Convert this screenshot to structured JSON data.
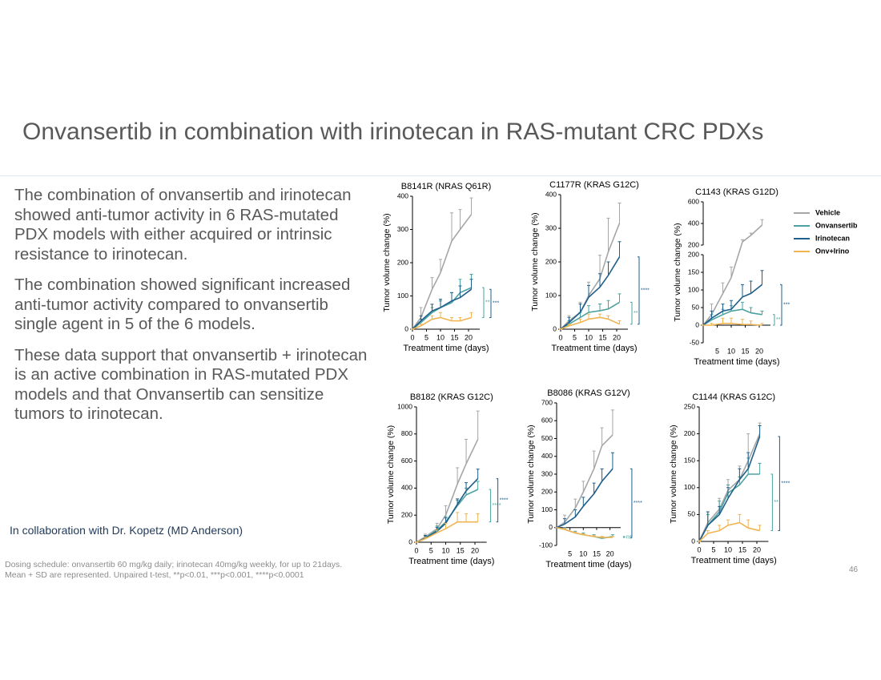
{
  "title": "Onvansertib in combination with irinotecan in RAS-mutant CRC PDXs",
  "bullets": [
    "The combination of onvansertib and irinotecan showed anti-tumor activity in 6 RAS-mutated PDX models with either acquired or intrinsic resistance to irinotecan.",
    "The combination showed significant increased anti-tumor activity compared to onvansertib single agent in 5 of the 6 models.",
    "These data support that onvansertib + irinotecan is an active combination in RAS-mutated PDX models and that Onvansertib can sensitize tumors to irinotecan."
  ],
  "collaboration": "In collaboration with Dr. Kopetz (MD Anderson)",
  "footnotes": [
    "Dosing schedule: onvansertib 60 mg/kg daily; irinotecan 40mg/kg weekly, for up to 21days.",
    "Mean + SD are represented. Unpaired t-test,  **p<0.01, ***p<0.001, ****p<0.0001"
  ],
  "page_number": "46",
  "chart_data": [
    {
      "type": "line",
      "title": "B8141R (NRAS Q61R)",
      "x_label": "Treatment time (days)",
      "y_label": "Tumor volume change (%)",
      "x": [
        0,
        3,
        7,
        10,
        14,
        17,
        21
      ],
      "xlim": [
        0,
        24
      ],
      "xticks": [
        0,
        5,
        10,
        15,
        20
      ],
      "ylim": [
        0,
        400
      ],
      "yticks": [
        0,
        100,
        200,
        300,
        400
      ],
      "series": [
        {
          "name": "Vehicle",
          "color": "#a6a6a6",
          "values": [
            0,
            35,
            120,
            170,
            265,
            300,
            345
          ],
          "errors": [
            0,
            30,
            35,
            40,
            85,
            60,
            50
          ]
        },
        {
          "name": "Onvansertib",
          "color": "#4aa3a0",
          "values": [
            0,
            20,
            50,
            65,
            80,
            110,
            125
          ],
          "errors": [
            0,
            10,
            15,
            20,
            30,
            40,
            40
          ],
          "significance": "**"
        },
        {
          "name": "Irinotecan",
          "color": "#1f5f8b",
          "values": [
            0,
            25,
            55,
            65,
            85,
            95,
            120
          ],
          "errors": [
            0,
            15,
            20,
            25,
            25,
            35,
            30
          ],
          "significance": "***"
        },
        {
          "name": "Onv+Irino",
          "color": "#f0b452",
          "values": [
            0,
            10,
            30,
            35,
            25,
            25,
            35
          ],
          "errors": [
            0,
            5,
            10,
            15,
            10,
            10,
            15
          ]
        }
      ]
    },
    {
      "type": "line",
      "title": "C1177R (KRAS G12C)",
      "x_label": "Treatment time (days)",
      "y_label": "Tumor volume change (%)",
      "x": [
        0,
        3,
        7,
        10,
        14,
        17,
        21
      ],
      "xlim": [
        0,
        24
      ],
      "xticks": [
        0,
        5,
        10,
        15,
        20
      ],
      "ylim": [
        0,
        400
      ],
      "yticks": [
        0,
        100,
        200,
        300,
        400
      ],
      "series": [
        {
          "name": "Vehicle",
          "color": "#a6a6a6",
          "values": [
            0,
            25,
            50,
            100,
            150,
            230,
            315
          ],
          "errors": [
            0,
            15,
            30,
            40,
            70,
            100,
            60
          ]
        },
        {
          "name": "Onvansertib",
          "color": "#4aa3a0",
          "values": [
            0,
            15,
            35,
            50,
            55,
            60,
            80
          ],
          "errors": [
            0,
            10,
            15,
            20,
            20,
            25,
            25
          ],
          "significance": "**"
        },
        {
          "name": "Irinotecan",
          "color": "#1f5f8b",
          "values": [
            0,
            20,
            50,
            95,
            125,
            160,
            215
          ],
          "errors": [
            0,
            15,
            25,
            35,
            40,
            40,
            45
          ],
          "significance": "****"
        },
        {
          "name": "Onv+Irino",
          "color": "#f0b452",
          "values": [
            0,
            10,
            20,
            30,
            35,
            30,
            15
          ],
          "errors": [
            0,
            5,
            10,
            15,
            10,
            10,
            10
          ]
        }
      ]
    },
    {
      "type": "line",
      "title": "C1143 (KRAS G12D)",
      "x_label": "Treatment time (days)",
      "y_label": "Tumor volume change (%)",
      "x": [
        0,
        3,
        7,
        10,
        14,
        17,
        21
      ],
      "xlim": [
        0,
        24
      ],
      "xticks": [
        5,
        10,
        15,
        20
      ],
      "ylim": [
        -50,
        200
      ],
      "yticks": [
        -50,
        0,
        50,
        100,
        150,
        200
      ],
      "y_break": {
        "ylim": [
          200,
          600
        ],
        "yticks": [
          200,
          400,
          600
        ]
      },
      "legend": "right",
      "series": [
        {
          "name": "Vehicle",
          "color": "#a6a6a6",
          "values": [
            0,
            30,
            90,
            135,
            230,
            290,
            385
          ],
          "errors": [
            0,
            30,
            30,
            30,
            20,
            20,
            50
          ]
        },
        {
          "name": "Onvansertib",
          "color": "#4aa3a0",
          "values": [
            0,
            15,
            30,
            40,
            45,
            35,
            30
          ],
          "errors": [
            0,
            15,
            15,
            15,
            20,
            15,
            10
          ],
          "significance": "**"
        },
        {
          "name": "Irinotecan",
          "color": "#1f5f8b",
          "values": [
            0,
            20,
            40,
            45,
            80,
            90,
            115
          ],
          "errors": [
            0,
            20,
            20,
            25,
            35,
            35,
            40
          ],
          "significance": "***"
        },
        {
          "name": "Onv+Irino",
          "color": "#f0b452",
          "values": [
            0,
            0,
            5,
            5,
            2,
            2,
            0
          ],
          "errors": [
            0,
            5,
            15,
            15,
            15,
            10,
            5
          ]
        }
      ]
    },
    {
      "type": "line",
      "title": "B8182 (KRAS G12C)",
      "x_label": "Treatment time (days)",
      "y_label": "Tumor volume change (%)",
      "x": [
        0,
        3,
        7,
        10,
        14,
        17,
        21
      ],
      "xlim": [
        0,
        24
      ],
      "xticks": [
        0,
        5,
        10,
        15,
        20
      ],
      "ylim": [
        0,
        1000
      ],
      "yticks": [
        0,
        200,
        400,
        600,
        800,
        1000
      ],
      "series": [
        {
          "name": "Vehicle",
          "color": "#a6a6a6",
          "values": [
            0,
            40,
            100,
            200,
            430,
            580,
            760
          ],
          "errors": [
            0,
            20,
            40,
            70,
            120,
            180,
            210
          ]
        },
        {
          "name": "Onvansertib",
          "color": "#4aa3a0",
          "values": [
            0,
            30,
            90,
            150,
            270,
            350,
            390
          ],
          "errors": [
            0,
            15,
            30,
            40,
            40,
            50,
            60
          ],
          "significance": "****"
        },
        {
          "name": "Irinotecan",
          "color": "#1f5f8b",
          "values": [
            0,
            30,
            80,
            140,
            280,
            380,
            470
          ],
          "errors": [
            0,
            20,
            30,
            40,
            40,
            60,
            70
          ],
          "significance": "****"
        },
        {
          "name": "Onv+Irino",
          "color": "#f0b452",
          "values": [
            0,
            25,
            70,
            100,
            150,
            150,
            150
          ],
          "errors": [
            0,
            10,
            20,
            40,
            70,
            60,
            60
          ]
        }
      ]
    },
    {
      "type": "line",
      "title": "B8086 (KRAS G12V)",
      "x_label": "Treatment time (days)",
      "y_label": "Tumor volume change (%)",
      "x": [
        0,
        3,
        7,
        10,
        14,
        17,
        21
      ],
      "xlim": [
        0,
        24
      ],
      "xticks": [
        5,
        10,
        15,
        20
      ],
      "ylim": [
        -100,
        700
      ],
      "yticks": [
        -100,
        0,
        100,
        200,
        300,
        400,
        500,
        600,
        700
      ],
      "series": [
        {
          "name": "Vehicle",
          "color": "#a6a6a6",
          "values": [
            0,
            30,
            110,
            200,
            330,
            460,
            520
          ],
          "errors": [
            0,
            40,
            50,
            60,
            100,
            100,
            140
          ]
        },
        {
          "name": "Onvansertib",
          "color": "#4aa3a0",
          "values": [
            0,
            -10,
            -30,
            -40,
            -50,
            -60,
            -50
          ],
          "errors": [
            0,
            10,
            10,
            10,
            10,
            10,
            10
          ],
          "significance": "ns"
        },
        {
          "name": "Irinotecan",
          "color": "#1f5f8b",
          "values": [
            0,
            20,
            60,
            120,
            190,
            260,
            330
          ],
          "errors": [
            0,
            30,
            40,
            50,
            60,
            70,
            90
          ],
          "significance": "****"
        },
        {
          "name": "Onv+Irino",
          "color": "#f0b452",
          "values": [
            0,
            -10,
            -30,
            -40,
            -50,
            -55,
            -55
          ],
          "errors": [
            0,
            5,
            5,
            5,
            5,
            5,
            5
          ]
        }
      ]
    },
    {
      "type": "line",
      "title": "C1144 (KRAS G12C)",
      "x_label": "Treatment time (days)",
      "y_label": "Tumor volume change (%)",
      "x": [
        0,
        3,
        7,
        10,
        14,
        17,
        21
      ],
      "xlim": [
        0,
        24
      ],
      "xticks": [
        0,
        5,
        10,
        15,
        20
      ],
      "ylim": [
        0,
        250
      ],
      "yticks": [
        0,
        50,
        100,
        150,
        200,
        250
      ],
      "series": [
        {
          "name": "Vehicle",
          "color": "#a6a6a6",
          "values": [
            0,
            35,
            60,
            95,
            115,
            150,
            200
          ],
          "errors": [
            0,
            20,
            20,
            20,
            25,
            50,
            20
          ]
        },
        {
          "name": "Onvansertib",
          "color": "#4aa3a0",
          "values": [
            0,
            30,
            55,
            90,
            105,
            125,
            125
          ],
          "errors": [
            0,
            20,
            20,
            15,
            15,
            30,
            20
          ],
          "significance": "**"
        },
        {
          "name": "Irinotecan",
          "color": "#1f5f8b",
          "values": [
            0,
            30,
            50,
            80,
            115,
            135,
            195
          ],
          "errors": [
            0,
            25,
            15,
            20,
            20,
            30,
            20
          ],
          "significance": "****"
        },
        {
          "name": "Onv+Irino",
          "color": "#f0b452",
          "values": [
            0,
            15,
            20,
            30,
            35,
            25,
            20
          ],
          "errors": [
            0,
            5,
            10,
            10,
            15,
            15,
            10
          ]
        }
      ]
    }
  ]
}
